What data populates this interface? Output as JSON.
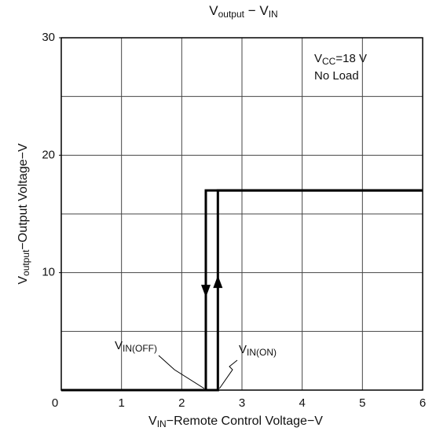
{
  "chart_data": {
    "type": "line",
    "title": [
      {
        "t": "V"
      },
      {
        "t": "output",
        "sub": true
      },
      {
        "t": " − V"
      },
      {
        "t": "IN",
        "sub": true
      }
    ],
    "xlabel": [
      {
        "t": "V"
      },
      {
        "t": "IN",
        "sub": true
      },
      {
        "t": "−Remote Control Voltage−V"
      }
    ],
    "ylabel": [
      {
        "t": "V"
      },
      {
        "t": "output",
        "sub": true
      },
      {
        "t": "−Output Voltage−V"
      }
    ],
    "note": [
      [
        {
          "t": "V"
        },
        {
          "t": "CC",
          "sub": true
        },
        {
          "t": "=18 V"
        }
      ],
      [
        {
          "t": "No Load"
        }
      ]
    ],
    "annotations": [
      {
        "label": [
          {
            "t": "V"
          },
          {
            "t": "IN(OFF)",
            "sub": true
          }
        ],
        "x": 2.4
      },
      {
        "label": [
          {
            "t": "V"
          },
          {
            "t": "IN(ON)",
            "sub": true
          }
        ],
        "x": 2.6
      }
    ],
    "xlim": [
      0,
      6
    ],
    "xticks": [
      0,
      1,
      2,
      3,
      4,
      5,
      6
    ],
    "ylim": [
      0,
      30
    ],
    "yticks": [
      10,
      20,
      30
    ],
    "ygrid": [
      5,
      10,
      15,
      20,
      25
    ],
    "grid": true,
    "series": [
      {
        "color": "#000000",
        "x": [
          0,
          2.6,
          2.6,
          6
        ],
        "values": [
          0,
          0,
          17,
          17
        ],
        "arrow": "up"
      },
      {
        "color": "#000000",
        "x": [
          6,
          2.4,
          2.4,
          0
        ],
        "values": [
          17,
          17,
          0,
          0
        ],
        "arrow": "down"
      }
    ]
  }
}
